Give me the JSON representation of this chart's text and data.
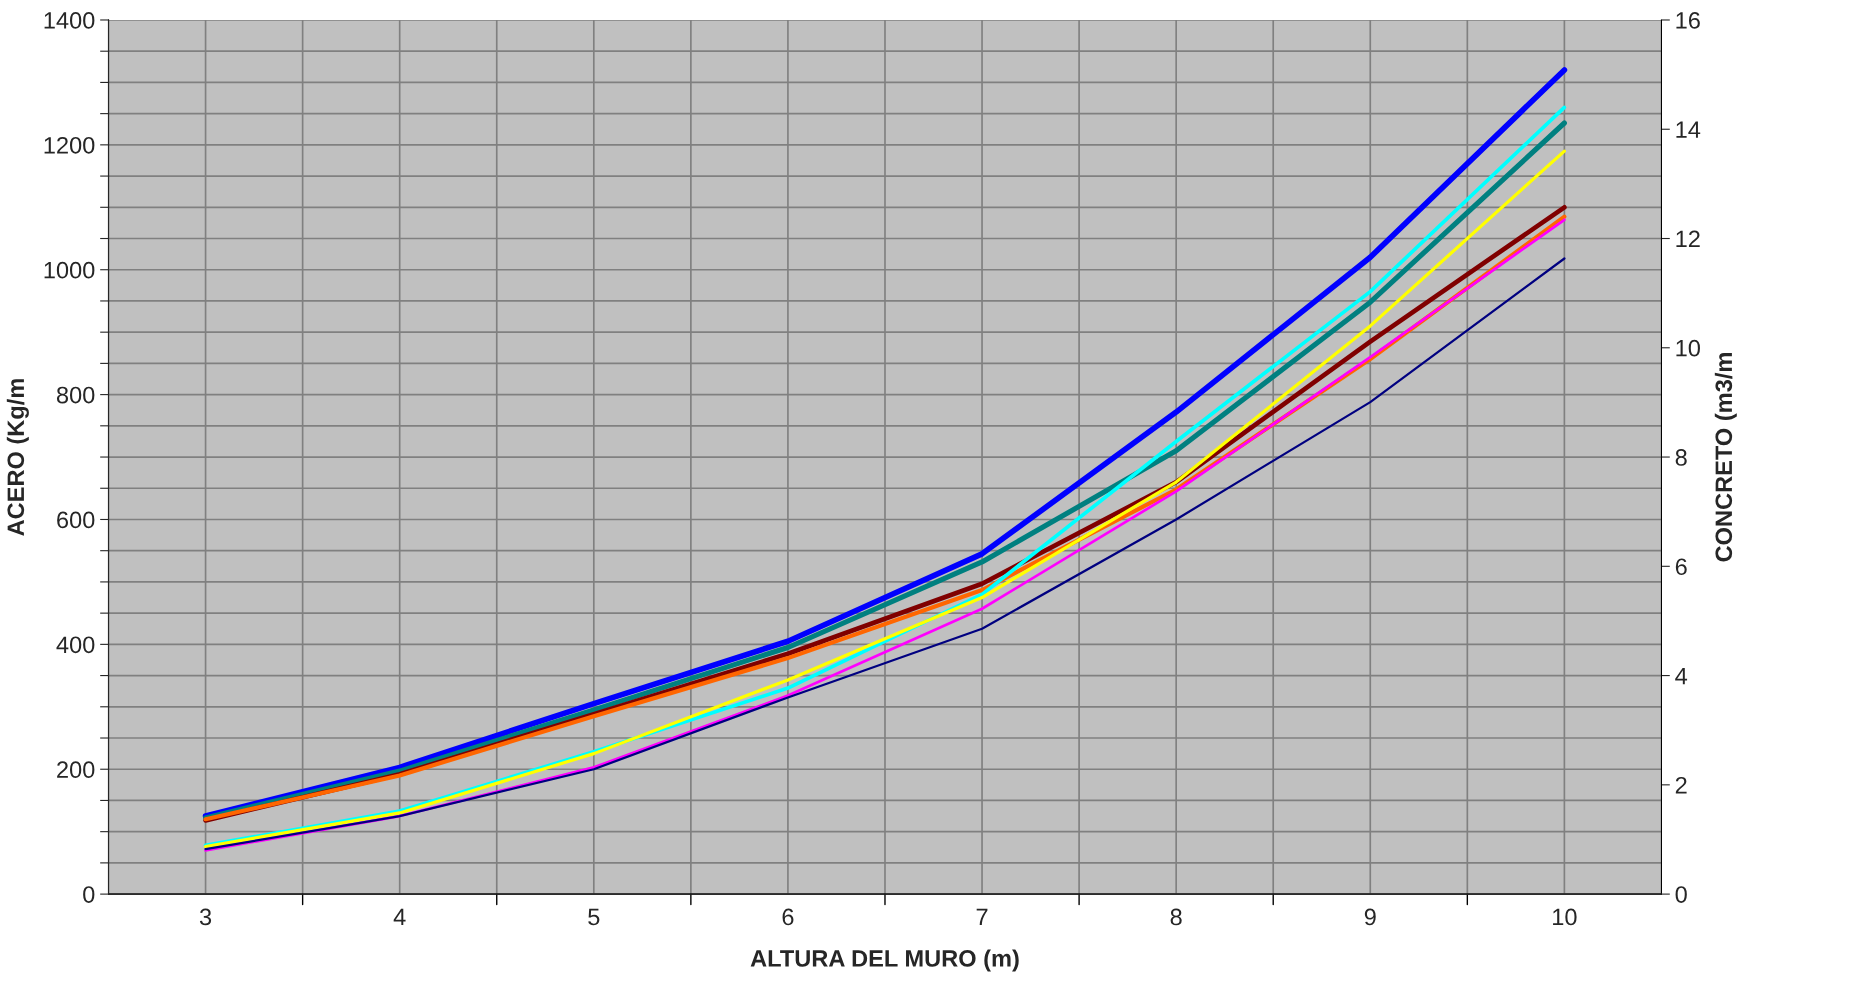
{
  "chart_data": {
    "type": "line",
    "xlabel": "ALTURA DEL MURO (m)",
    "ylabel": "ACERO (Kg/m",
    "y2label": "CONCRETO (m3/m",
    "categories": [
      "3",
      "4",
      "5",
      "6",
      "7",
      "8",
      "9",
      "10"
    ],
    "series": [
      {
        "color": "#0000ff",
        "values": [
          125,
          203,
          305,
          405,
          545,
          772,
          1020,
          1320
        ]
      },
      {
        "color": "#008080",
        "values": [
          122,
          197,
          295,
          395,
          532,
          710,
          948,
          1235
        ]
      },
      {
        "color": "#800000",
        "values": [
          118,
          192,
          288,
          385,
          497,
          660,
          885,
          1100
        ]
      },
      {
        "color": "#ff6600",
        "values": [
          120,
          190,
          285,
          378,
          487,
          648,
          857,
          1085
        ]
      },
      {
        "color": "#00ffff",
        "values": [
          78,
          133,
          228,
          330,
          480,
          725,
          965,
          1260
        ]
      },
      {
        "color": "#ffff00",
        "values": [
          76,
          130,
          225,
          343,
          475,
          660,
          910,
          1190
        ]
      },
      {
        "color": "#ff00ff",
        "values": [
          70,
          125,
          203,
          318,
          457,
          645,
          860,
          1080
        ]
      },
      {
        "color": "#000080",
        "values": [
          72,
          125,
          200,
          315,
          425,
          600,
          788,
          1018
        ]
      }
    ],
    "ylim": [
      0,
      1400
    ],
    "yticks": [
      0,
      {
        "value": 50,
        "label": null
      },
      {
        "value": 100,
        "label": null
      },
      {
        "value": 150,
        "label": null
      },
      200,
      {
        "value": 250,
        "label": null
      },
      {
        "value": 300,
        "label": null
      },
      {
        "value": 350,
        "label": null
      },
      400,
      {
        "value": 450,
        "label": null
      },
      {
        "value": 500,
        "label": null
      },
      {
        "value": 550,
        "label": null
      },
      600,
      {
        "value": 650,
        "label": null
      },
      {
        "value": 700,
        "label": null
      },
      {
        "value": 750,
        "label": null
      },
      800,
      {
        "value": 850,
        "label": null
      },
      {
        "value": 900,
        "label": null
      },
      {
        "value": 950,
        "label": null
      },
      1000,
      {
        "value": 1050,
        "label": null
      },
      {
        "value": 1100,
        "label": null
      },
      {
        "value": 1150,
        "label": null
      },
      1200,
      {
        "value": 1250,
        "label": null
      },
      {
        "value": 1300,
        "label": null
      },
      {
        "value": 1350,
        "label": null
      },
      1400
    ],
    "y2lim": [
      0,
      16
    ],
    "y2ticks": [
      0,
      2,
      4,
      6,
      8,
      10,
      12,
      14,
      16
    ],
    "grid": true,
    "legend": false,
    "marker": "none",
    "line_style": "solid"
  }
}
